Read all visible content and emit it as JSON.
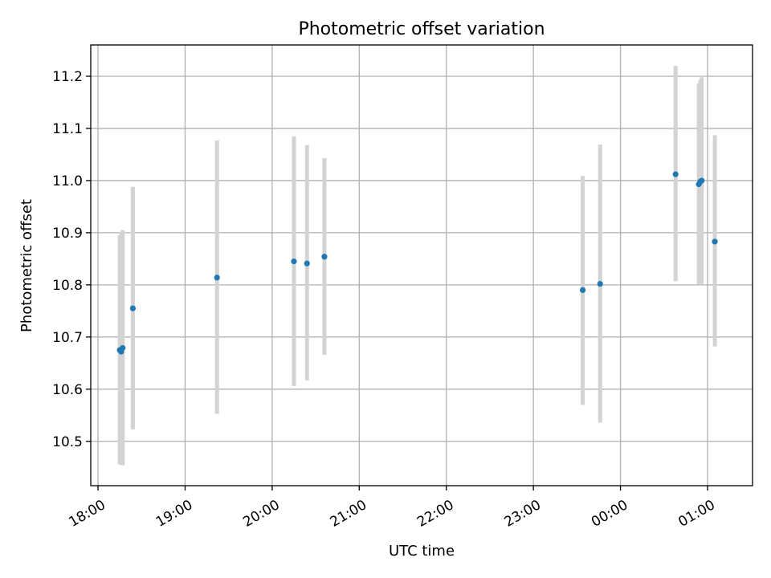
{
  "chart_data": {
    "type": "scatter",
    "title": "Photometric offset variation",
    "xlabel": "UTC time",
    "ylabel": "Photometric offset",
    "x_axis_kind": "time",
    "xlim": [
      "17:55",
      "01:31"
    ],
    "ylim": [
      10.415,
      11.26
    ],
    "grid": true,
    "x_ticks": [
      "18:00",
      "19:00",
      "20:00",
      "21:00",
      "22:00",
      "23:00",
      "00:00",
      "01:00"
    ],
    "y_ticks": [
      10.5,
      10.6,
      10.7,
      10.8,
      10.9,
      11.0,
      11.1,
      11.2
    ],
    "y_tick_labels": [
      "10.5",
      "10.6",
      "10.7",
      "10.8",
      "10.9",
      "11.0",
      "11.1",
      "11.2"
    ],
    "point_color": "#1f77b4",
    "errorbar_color": "#d3d3d3",
    "points": [
      {
        "t": "18:15",
        "y": 10.675,
        "lo": 10.456,
        "hi": 10.895
      },
      {
        "t": "18:16",
        "y": 10.672,
        "lo": 10.455,
        "hi": 10.9
      },
      {
        "t": "18:17",
        "y": 10.679,
        "lo": 10.454,
        "hi": 10.905
      },
      {
        "t": "18:24",
        "y": 10.755,
        "lo": 10.523,
        "hi": 10.988
      },
      {
        "t": "19:22",
        "y": 10.814,
        "lo": 10.553,
        "hi": 11.077
      },
      {
        "t": "20:15",
        "y": 10.845,
        "lo": 10.606,
        "hi": 11.085
      },
      {
        "t": "20:24",
        "y": 10.841,
        "lo": 10.617,
        "hi": 11.068
      },
      {
        "t": "20:36",
        "y": 10.854,
        "lo": 10.666,
        "hi": 11.043
      },
      {
        "t": "23:34",
        "y": 10.79,
        "lo": 10.57,
        "hi": 11.009
      },
      {
        "t": "23:46",
        "y": 10.802,
        "lo": 10.536,
        "hi": 11.069
      },
      {
        "t": "00:38",
        "y": 11.012,
        "lo": 10.807,
        "hi": 11.22
      },
      {
        "t": "00:54",
        "y": 10.993,
        "lo": 10.801,
        "hi": 11.186
      },
      {
        "t": "00:55",
        "y": 10.998,
        "lo": 10.8,
        "hi": 11.193
      },
      {
        "t": "00:56",
        "y": 11.0,
        "lo": 10.802,
        "hi": 11.198
      },
      {
        "t": "01:05",
        "y": 10.883,
        "lo": 10.682,
        "hi": 11.087
      }
    ]
  }
}
